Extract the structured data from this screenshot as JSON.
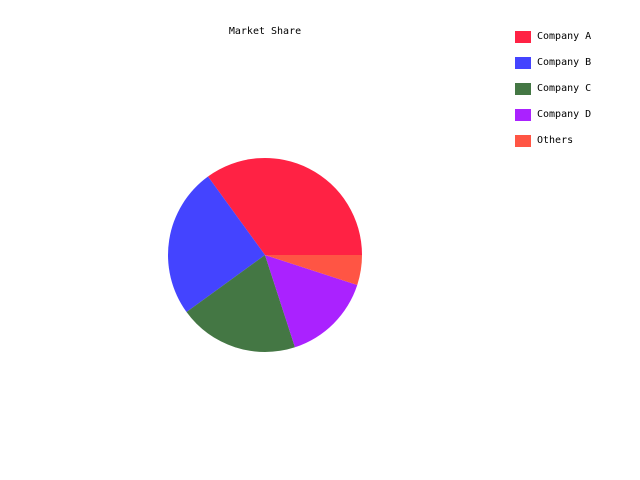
{
  "chart_data": {
    "type": "pie",
    "title": "Market Share",
    "categories": [
      "Company A",
      "Company B",
      "Company C",
      "Company D",
      "Others"
    ],
    "values": [
      35,
      25,
      20,
      15,
      5
    ],
    "colors": [
      "#ff2244",
      "#4444ff",
      "#447744",
      "#aa22ff",
      "#ff5544"
    ],
    "start_angle_deg": 0,
    "direction": "counterclockwise",
    "legend_position": "top-right",
    "grid": false
  }
}
